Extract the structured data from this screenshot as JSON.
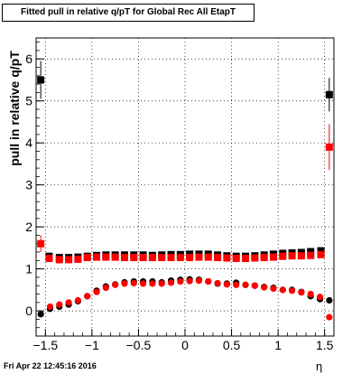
{
  "chart_data": {
    "type": "scatter",
    "title": "Fitted pull in relative q/pT for Global Rec All EtapT",
    "xlabel": "η",
    "ylabel": "pull in relative q/pT",
    "xlim": [
      -1.6,
      1.6
    ],
    "ylim": [
      -0.6,
      6.5
    ],
    "x_ticks": [
      -1.5,
      -1.0,
      -0.5,
      0,
      0.5,
      1.0,
      1.5
    ],
    "x_tick_labels": [
      "−1.5",
      "−1",
      "−0.5",
      "0",
      "0.5",
      "1",
      "1.5"
    ],
    "y_ticks": [
      0,
      1,
      2,
      3,
      4,
      5,
      6
    ],
    "y_tick_labels": [
      "0",
      "1",
      "2",
      "3",
      "4",
      "5",
      "6"
    ],
    "grid": true,
    "series": [
      {
        "marker": "square",
        "color": "#000000",
        "points": [
          {
            "x": -1.55,
            "y": 5.5,
            "err": 0.45
          },
          {
            "x": 1.55,
            "y": 5.15,
            "err": 0.4
          }
        ]
      },
      {
        "marker": "square",
        "color": "#ff0000",
        "points": [
          {
            "x": -1.55,
            "y": 1.6,
            "err": 0.2
          },
          {
            "x": 1.55,
            "y": 3.9,
            "err": 0.55
          }
        ]
      },
      {
        "marker": "square",
        "color": "#000000",
        "x": [
          -1.46,
          -1.35,
          -1.25,
          -1.15,
          -1.05,
          -0.95,
          -0.85,
          -0.75,
          -0.65,
          -0.55,
          -0.45,
          -0.35,
          -0.25,
          -0.15,
          -0.05,
          0.05,
          0.15,
          0.25,
          0.35,
          0.45,
          0.55,
          0.65,
          0.75,
          0.85,
          0.95,
          1.05,
          1.15,
          1.25,
          1.35,
          1.46
        ],
        "y": [
          1.3,
          1.27,
          1.27,
          1.28,
          1.3,
          1.32,
          1.33,
          1.33,
          1.33,
          1.33,
          1.33,
          1.32,
          1.33,
          1.34,
          1.34,
          1.35,
          1.35,
          1.35,
          1.33,
          1.31,
          1.3,
          1.3,
          1.31,
          1.33,
          1.35,
          1.37,
          1.38,
          1.39,
          1.41,
          1.43
        ]
      },
      {
        "marker": "square",
        "color": "#ff0000",
        "x": [
          -1.46,
          -1.35,
          -1.25,
          -1.15,
          -1.05,
          -0.95,
          -0.85,
          -0.75,
          -0.65,
          -0.55,
          -0.45,
          -0.35,
          -0.25,
          -0.15,
          -0.05,
          0.05,
          0.15,
          0.25,
          0.35,
          0.45,
          0.55,
          0.65,
          0.75,
          0.85,
          0.95,
          1.05,
          1.15,
          1.25,
          1.35,
          1.46
        ],
        "y": [
          1.25,
          1.22,
          1.22,
          1.23,
          1.27,
          1.28,
          1.28,
          1.28,
          1.27,
          1.27,
          1.27,
          1.27,
          1.27,
          1.27,
          1.27,
          1.27,
          1.28,
          1.28,
          1.27,
          1.26,
          1.25,
          1.25,
          1.26,
          1.27,
          1.28,
          1.3,
          1.31,
          1.31,
          1.32,
          1.34
        ]
      },
      {
        "marker": "circle",
        "color": "#000000",
        "x": [
          -1.55,
          -1.45,
          -1.35,
          -1.25,
          -1.15,
          -1.05,
          -0.95,
          -0.85,
          -0.75,
          -0.65,
          -0.55,
          -0.45,
          -0.35,
          -0.25,
          -0.15,
          -0.05,
          0.05,
          0.15,
          0.25,
          0.35,
          0.45,
          0.55,
          0.65,
          0.75,
          0.85,
          0.95,
          1.05,
          1.15,
          1.25,
          1.35,
          1.45,
          1.55
        ],
        "y": [
          -0.08,
          0.05,
          0.1,
          0.15,
          0.23,
          0.35,
          0.48,
          0.58,
          0.63,
          0.68,
          0.7,
          0.7,
          0.7,
          0.68,
          0.72,
          0.74,
          0.75,
          0.74,
          0.7,
          0.65,
          0.65,
          0.67,
          0.62,
          0.6,
          0.57,
          0.55,
          0.5,
          0.5,
          0.45,
          0.35,
          0.28,
          0.25
        ]
      },
      {
        "marker": "circle",
        "color": "#ff0000",
        "x": [
          -1.45,
          -1.35,
          -1.25,
          -1.15,
          -1.05,
          -0.95,
          -0.85,
          -0.75,
          -0.65,
          -0.55,
          -0.45,
          -0.35,
          -0.25,
          -0.15,
          -0.05,
          0.05,
          0.15,
          0.25,
          0.35,
          0.45,
          0.55,
          0.65,
          0.75,
          0.85,
          0.95,
          1.05,
          1.15,
          1.25,
          1.35,
          1.45,
          1.55
        ],
        "y": [
          0.1,
          0.15,
          0.2,
          0.25,
          0.35,
          0.45,
          0.55,
          0.62,
          0.65,
          0.66,
          0.65,
          0.65,
          0.65,
          0.67,
          0.7,
          0.71,
          0.72,
          0.7,
          0.66,
          0.63,
          0.62,
          0.62,
          0.6,
          0.56,
          0.53,
          0.5,
          0.48,
          0.44,
          0.4,
          0.33,
          -0.15
        ]
      }
    ]
  },
  "footer": {
    "timestamp": "Fri Apr 22 12:45:16 2016"
  }
}
